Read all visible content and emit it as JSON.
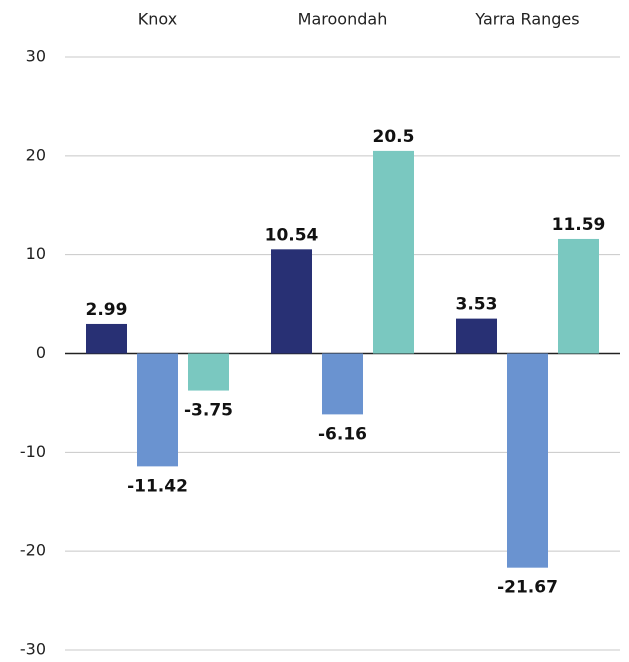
{
  "chart_data": {
    "type": "bar",
    "categories": [
      "Knox",
      "Maroondah",
      "Yarra Ranges"
    ],
    "series": [
      {
        "color": "#283074",
        "values": [
          2.99,
          10.54,
          3.53
        ]
      },
      {
        "color": "#6a93d0",
        "values": [
          -11.42,
          -6.16,
          -21.67
        ]
      },
      {
        "color": "#7ac8c0",
        "values": [
          -3.75,
          20.5,
          11.59
        ]
      }
    ],
    "ylim": [
      -30,
      30
    ],
    "yticks": [
      -30,
      -20,
      -10,
      0,
      10,
      20,
      30
    ],
    "grid": true
  }
}
